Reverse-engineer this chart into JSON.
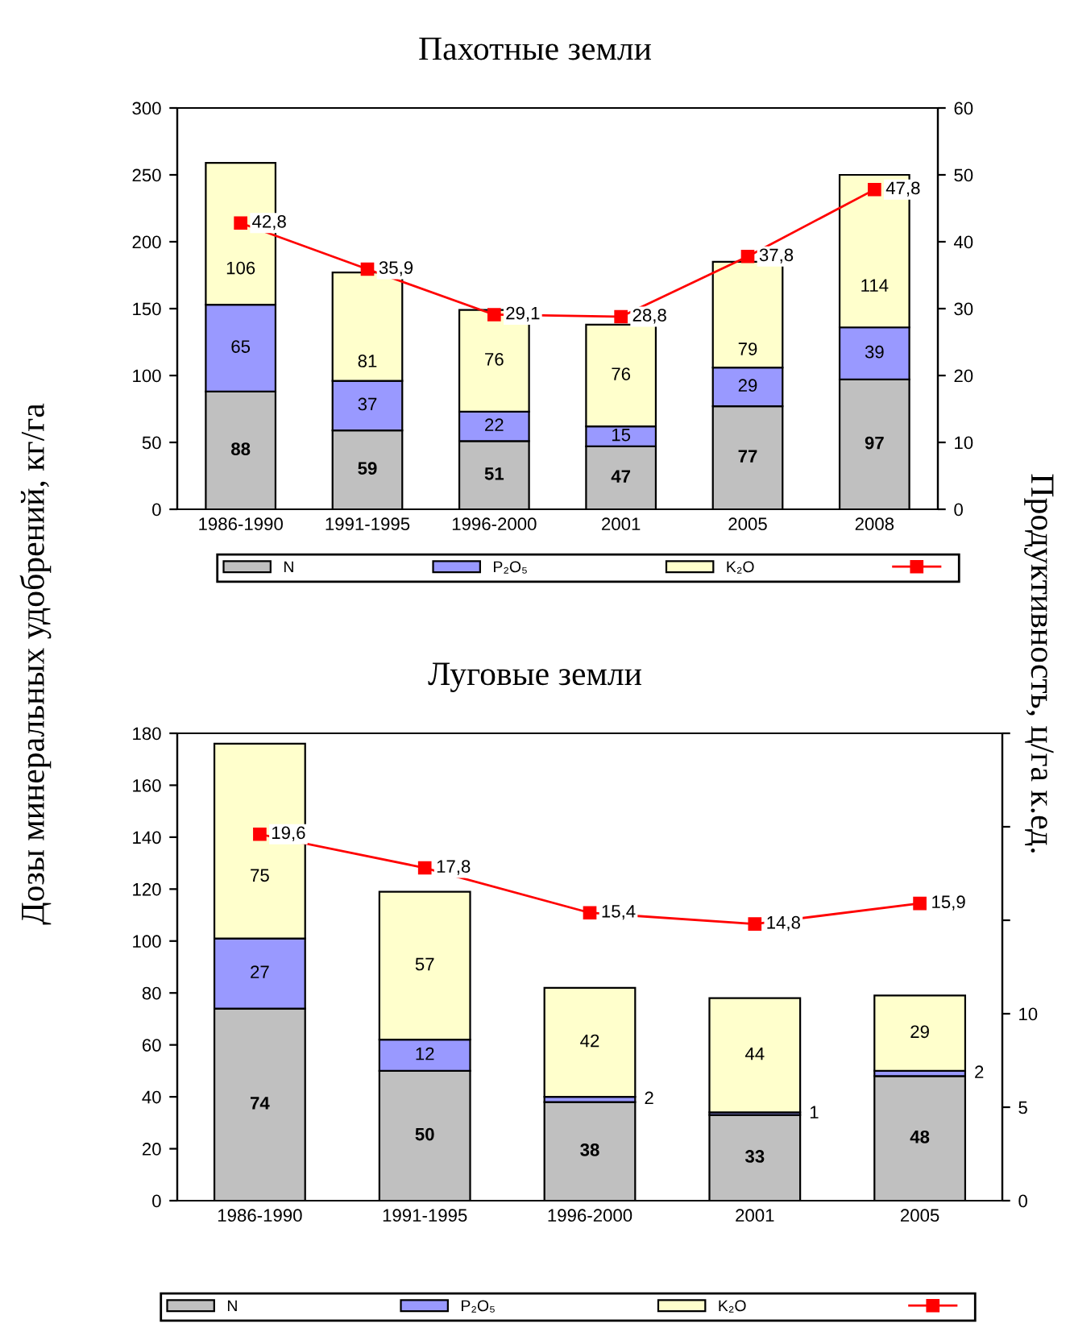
{
  "chart_data": [
    {
      "type": "bar",
      "title": "Пахотные земли",
      "ylabel": "Дозы минеральных удобрений, кг/га",
      "y2label": "Продуктивность, ц/га к.ед.",
      "stacked": true,
      "data_labels": true,
      "legend": "bottom",
      "grid": false,
      "categories": [
        "1986-1990",
        "1991-1995",
        "1996-2000",
        "2001",
        "2005",
        "2008"
      ],
      "ylim": [
        0,
        300
      ],
      "yticks": [
        0,
        50,
        100,
        150,
        200,
        250,
        300
      ],
      "y2lim": [
        0,
        60
      ],
      "y2ticks": [
        0,
        10,
        20,
        30,
        40,
        50,
        60
      ],
      "series": [
        {
          "name": "N",
          "color": "#c0c0c0",
          "values": [
            88,
            59,
            51,
            47,
            77,
            97
          ]
        },
        {
          "name": "P₂O₅",
          "color": "#9999ff",
          "values": [
            65,
            37,
            22,
            15,
            29,
            39
          ]
        },
        {
          "name": "K₂O",
          "color": "#ffffcc",
          "values": [
            106,
            81,
            76,
            76,
            79,
            114
          ]
        },
        {
          "type": "line",
          "axis": "y2",
          "color": "#ff0000",
          "marker": "square",
          "values": [
            42.8,
            35.9,
            29.1,
            28.8,
            37.8,
            47.8
          ],
          "value_labels": [
            "42,8",
            "35,9",
            "29,1",
            "28,8",
            "37,8",
            "47,8"
          ]
        }
      ]
    },
    {
      "type": "bar",
      "title": "Луговые земли",
      "stacked": true,
      "data_labels": true,
      "legend": "bottom",
      "grid": false,
      "categories": [
        "1986-1990",
        "1991-1995",
        "1996-2000",
        "2001",
        "2005"
      ],
      "ylim": [
        0,
        180
      ],
      "yticks": [
        0,
        20,
        40,
        60,
        80,
        100,
        120,
        140,
        160,
        180
      ],
      "y2lim": [
        0,
        25
      ],
      "y2ticks": [
        0,
        5,
        10,
        {
          "value": 15,
          "label": null
        },
        {
          "value": 20,
          "label": null
        },
        {
          "value": 25,
          "label": null
        }
      ],
      "series": [
        {
          "name": "N",
          "color": "#c0c0c0",
          "values": [
            74,
            50,
            38,
            33,
            48
          ]
        },
        {
          "name": "P₂O₅",
          "color": "#9999ff",
          "values": [
            27,
            12,
            2,
            1,
            2
          ]
        },
        {
          "name": "K₂O",
          "color": "#ffffcc",
          "values": [
            75,
            57,
            42,
            44,
            29
          ]
        },
        {
          "type": "line",
          "axis": "y2",
          "color": "#ff0000",
          "marker": "square",
          "values": [
            19.6,
            17.8,
            15.4,
            14.8,
            15.9
          ],
          "value_labels": [
            "19,6",
            "17,8",
            "15,4",
            "14,8",
            "15,9"
          ]
        }
      ]
    }
  ]
}
